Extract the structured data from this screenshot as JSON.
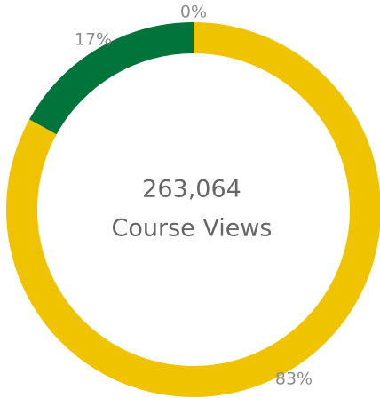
{
  "chart_data": {
    "type": "donut",
    "values": [
      83,
      17,
      0
    ],
    "value_labels": [
      "83%",
      "17%",
      "0%"
    ],
    "colors": [
      "#f0c300",
      "#00743a",
      "#8c8c8c"
    ],
    "annotations": [
      "263,064",
      "Course Views"
    ]
  }
}
